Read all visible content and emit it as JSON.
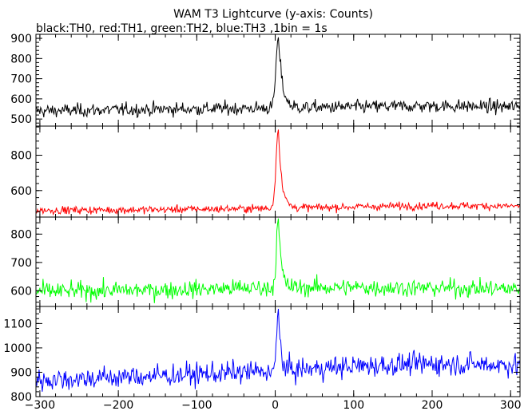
{
  "chart_data": {
    "type": "line",
    "title": "WAM T3 Lightcurve (y-axis: Counts)",
    "subtitle": "black:TH0, red:TH1, green:TH2, blue:TH3 ,1bin = 1s",
    "xlabel": "",
    "ylabel": "",
    "xlim": [
      -305,
      312
    ],
    "x_ticks": [
      -300,
      -200,
      -100,
      0,
      100,
      200,
      300
    ],
    "grid": false,
    "legend": "none",
    "bin_seconds": 1,
    "panels": [
      {
        "name": "TH0",
        "color": "#000000",
        "ylim": [
          465,
          920
        ],
        "y_ticks": [
          500,
          600,
          700,
          800,
          900
        ],
        "baseline_points": [
          [
            -305,
            540
          ],
          [
            -150,
            548
          ],
          [
            0,
            555
          ],
          [
            100,
            560
          ],
          [
            200,
            565
          ],
          [
            312,
            560
          ]
        ],
        "noise_amplitude": 30,
        "burst": {
          "peak_x": 4,
          "peak_value": 905,
          "rise_s": 3,
          "decay_s": 5
        }
      },
      {
        "name": "TH1",
        "color": "#ff0000",
        "ylim": [
          450,
          965
        ],
        "y_ticks": [
          600,
          800
        ],
        "baseline_points": [
          [
            -305,
            488
          ],
          [
            -150,
            492
          ],
          [
            0,
            500
          ],
          [
            100,
            508
          ],
          [
            200,
            515
          ],
          [
            312,
            512
          ]
        ],
        "noise_amplitude": 20,
        "burst": {
          "peak_x": 4,
          "peak_value": 945,
          "rise_s": 3,
          "decay_s": 4.5
        }
      },
      {
        "name": "TH2",
        "color": "#00ff00",
        "ylim": [
          545,
          860
        ],
        "y_ticks": [
          600,
          700,
          800
        ],
        "baseline_points": [
          [
            -305,
            598
          ],
          [
            -150,
            603
          ],
          [
            0,
            612
          ],
          [
            100,
            612
          ],
          [
            200,
            610
          ],
          [
            312,
            607
          ]
        ],
        "noise_amplitude": 28,
        "burst": {
          "peak_x": 4,
          "peak_value": 855,
          "rise_s": 2.5,
          "decay_s": 3.5
        }
      },
      {
        "name": "TH3",
        "color": "#0000ff",
        "ylim": [
          800,
          1170
        ],
        "y_ticks": [
          800,
          900,
          1000,
          1100
        ],
        "baseline_points": [
          [
            -305,
            868
          ],
          [
            -150,
            885
          ],
          [
            0,
            905
          ],
          [
            100,
            925
          ],
          [
            200,
            935
          ],
          [
            312,
            930
          ]
        ],
        "noise_amplitude": 42,
        "burst": {
          "peak_x": 4,
          "peak_value": 1160,
          "rise_s": 2,
          "decay_s": 3
        }
      }
    ]
  }
}
